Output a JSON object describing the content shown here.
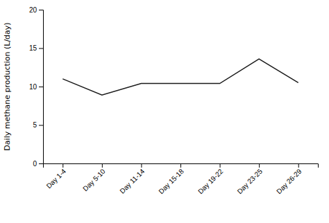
{
  "chart_data": {
    "type": "line",
    "categories": [
      "Day 1-4",
      "Day 5-10",
      "Day 11-14",
      "Day 15-18",
      "Day 19-22",
      "Day 23-25",
      "Day 26-29"
    ],
    "values": [
      11.0,
      8.9,
      10.4,
      10.4,
      10.4,
      13.6,
      10.5
    ],
    "ylabel": "Daily methane production (L/day)",
    "ylim": [
      0,
      20
    ],
    "yticks": [
      0,
      5,
      10,
      15,
      20
    ],
    "color": "#1a1a1a",
    "grid": false
  }
}
